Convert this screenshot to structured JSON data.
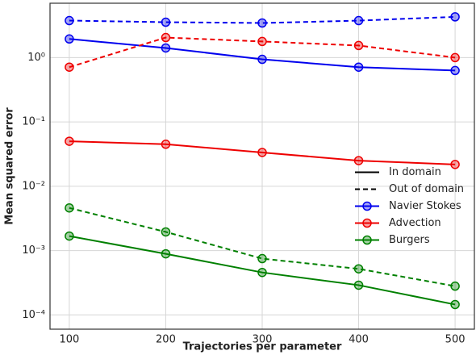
{
  "chart_data": {
    "type": "line",
    "x_label": "Trajectories per parameter",
    "y_label": "Mean squared error",
    "x": [
      100,
      200,
      300,
      400,
      500
    ],
    "xlim": [
      80,
      520
    ],
    "xticks": [
      100,
      200,
      300,
      400,
      500
    ],
    "ylim": [
      6e-05,
      7
    ],
    "yscale": "log",
    "yticks": [
      {
        "value": 0.0001,
        "label": "10⁻⁴"
      },
      {
        "value": 0.001,
        "label": "10⁻³"
      },
      {
        "value": 0.01,
        "label": "10⁻²"
      },
      {
        "value": 0.1,
        "label": "10⁻¹"
      },
      {
        "value": 1,
        "label": "10⁰"
      }
    ],
    "grid": true,
    "legend": "center right",
    "styles": [
      {
        "name": "In domain",
        "dashed": false
      },
      {
        "name": "Out of domain",
        "dashed": true
      }
    ],
    "series": [
      {
        "name": "Navier Stokes",
        "color": "#0000ee",
        "values": [
          [
            1.95,
            1.41,
            0.94,
            0.71,
            0.63
          ],
          [
            3.76,
            3.55,
            3.45,
            3.76,
            4.3
          ]
        ]
      },
      {
        "name": "Advection",
        "color": "#ee0000",
        "values": [
          [
            0.05,
            0.045,
            0.0335,
            0.025,
            0.0218
          ],
          [
            0.71,
            2.05,
            1.78,
            1.54,
            1.0
          ]
        ]
      },
      {
        "name": "Burgers",
        "color": "#008000",
        "values": [
          [
            0.00168,
            0.00089,
            0.000457,
            0.00029,
            0.000145
          ],
          [
            0.0046,
            0.00195,
            0.00075,
            0.00052,
            0.00028
          ]
        ]
      }
    ]
  }
}
